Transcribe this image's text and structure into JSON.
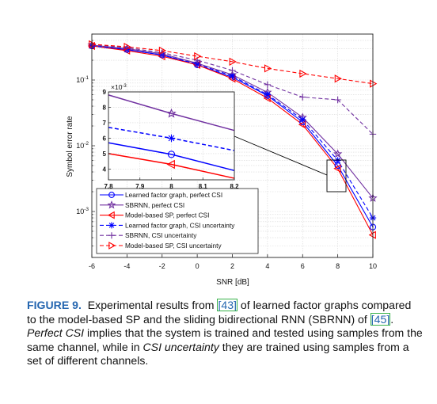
{
  "caption": {
    "label": "FIGURE 9.",
    "t1": "Experimental results from ",
    "ref1": "[43]",
    "t2": " of learned factor graphs compared to the model-based SP and the sliding bidirectional RNN (SBRNN) of ",
    "ref2": "[45]",
    "t3": ".",
    "em1": "Perfect CSI",
    "t4": " implies that the system is trained and tested using samples from the same channel, while in ",
    "em2": "CSI uncertainty",
    "t5": " they are trained using samples from a set of different channels."
  },
  "chart_data": [
    {
      "type": "line",
      "xlabel": "SNR [dB]",
      "ylabel": "Symbol error rate",
      "yscale": "log",
      "xlim": [
        -6,
        10
      ],
      "ylim": [
        0.0002,
        0.5
      ],
      "xticks": [
        -6,
        -4,
        -2,
        0,
        2,
        4,
        6,
        8,
        10
      ],
      "xtick_labels": [
        "-6",
        "-4",
        "-2",
        "0",
        "2",
        "4",
        "6",
        "8",
        "10"
      ],
      "yticks": [
        0.001,
        0.01,
        0.1
      ],
      "ytick_labels": [
        "10",
        "10",
        "10"
      ],
      "ytick_exps": [
        "-3",
        "-2",
        "-1"
      ],
      "grid": true,
      "legend_position": "bottom-left",
      "series": [
        {
          "name": "Learned factor graph, perfect CSI",
          "color": "#0000ff",
          "dash": "solid",
          "marker": "circle",
          "x": [
            -6,
            -4,
            -2,
            0,
            2,
            4,
            6,
            8,
            10
          ],
          "y": [
            0.33,
            0.29,
            0.24,
            0.17,
            0.11,
            0.058,
            0.023,
            0.005,
            0.00058
          ]
        },
        {
          "name": "SBRNN, perfect CSI",
          "color": "#7030a0",
          "dash": "solid",
          "marker": "star",
          "x": [
            -6,
            -4,
            -2,
            0,
            2,
            4,
            6,
            8,
            10
          ],
          "y": [
            0.34,
            0.3,
            0.25,
            0.18,
            0.12,
            0.065,
            0.027,
            0.0075,
            0.0016
          ]
        },
        {
          "name": "Model-based SP, perfect CSI",
          "color": "#ff0000",
          "dash": "solid",
          "marker": "triangle-left",
          "x": [
            -6,
            -4,
            -2,
            0,
            2,
            4,
            6,
            8,
            10
          ],
          "y": [
            0.33,
            0.28,
            0.23,
            0.17,
            0.105,
            0.053,
            0.021,
            0.0045,
            0.00044
          ]
        },
        {
          "name": "Learned factor graph, CSI uncertainty",
          "color": "#0000ff",
          "dash": "dashed",
          "marker": "asterisk",
          "x": [
            -6,
            -4,
            -2,
            0,
            2,
            4,
            6,
            8,
            10
          ],
          "y": [
            0.33,
            0.29,
            0.24,
            0.175,
            0.115,
            0.06,
            0.025,
            0.006,
            0.0008
          ]
        },
        {
          "name": "SBRNN, CSI uncertainty",
          "color": "#7030a0",
          "dash": "dashed",
          "marker": "plus",
          "x": [
            -6,
            -4,
            -2,
            0,
            2,
            4,
            6,
            8,
            10
          ],
          "y": [
            0.35,
            0.31,
            0.26,
            0.2,
            0.14,
            0.085,
            0.055,
            0.05,
            0.015
          ]
        },
        {
          "name": "Model-based SP, CSI uncertainty",
          "color": "#ff0000",
          "dash": "dashed",
          "marker": "triangle-right",
          "x": [
            -6,
            -4,
            -2,
            0,
            2,
            4,
            6,
            8,
            10
          ],
          "y": [
            0.35,
            0.32,
            0.28,
            0.23,
            0.19,
            0.15,
            0.125,
            0.105,
            0.088
          ]
        }
      ]
    },
    {
      "type": "line",
      "yscale": "linear",
      "y_multiplier": "×10",
      "y_multiplier_exp": "-3",
      "xlim": [
        7.8,
        8.2
      ],
      "ylim": [
        3.3,
        9
      ],
      "xticks": [
        7.8,
        7.9,
        8,
        8.1,
        8.2
      ],
      "xtick_labels": [
        "7.8",
        "7.9",
        "8",
        "8.1",
        "8.2"
      ],
      "yticks": [
        4,
        5,
        6,
        7,
        8,
        9
      ],
      "ytick_labels": [
        "4",
        "5",
        "6",
        "7",
        "8",
        "9"
      ],
      "grid": true,
      "series": [
        {
          "name": "Learned factor graph, perfect CSI",
          "color": "#0000ff",
          "dash": "solid",
          "marker": "circle",
          "x": [
            7.8,
            8,
            8.2
          ],
          "y": [
            5.7,
            4.95,
            3.9
          ]
        },
        {
          "name": "SBRNN, perfect CSI",
          "color": "#7030a0",
          "dash": "solid",
          "marker": "star",
          "x": [
            7.8,
            8,
            8.2
          ],
          "y": [
            8.8,
            7.6,
            6.5
          ]
        },
        {
          "name": "Model-based SP, perfect CSI",
          "color": "#ff0000",
          "dash": "solid",
          "marker": "triangle-left",
          "x": [
            7.8,
            8,
            8.2
          ],
          "y": [
            5.0,
            4.3,
            3.4
          ]
        },
        {
          "name": "Learned factor graph, CSI uncertainty",
          "color": "#0000ff",
          "dash": "dashed",
          "marker": "asterisk",
          "x": [
            7.8,
            8,
            8.2
          ],
          "y": [
            6.7,
            6.0,
            5.2
          ]
        }
      ]
    }
  ]
}
